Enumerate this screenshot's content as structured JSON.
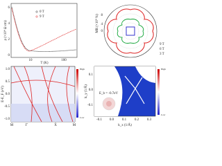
{
  "panels": [
    {
      "y_label": "ρ (×10⁴ Ω cm)",
      "x_label": "T (K)",
      "x_ticks": [
        "10",
        "100"
      ],
      "y_ticks": [
        "0",
        "2",
        "4",
        "6"
      ],
      "legend": [
        "0 T",
        "9 T"
      ]
    },
    {
      "y_label": "MR (×10⁴ %)",
      "ticks": [
        "0",
        "4",
        "8"
      ],
      "legend": [
        "9 T",
        "6 T",
        "3 T"
      ]
    },
    {
      "y_label": "E-E_F (eV)",
      "y_ticks": [
        "1.0",
        "0.5",
        "0.0",
        "-0.5",
        "-1.0"
      ],
      "x_ticks": [
        "M̄",
        "Γ̄",
        "X̄",
        "M̄"
      ],
      "colorbar": [
        "High",
        "Low"
      ]
    },
    {
      "annotation": "E_b = -0.7eV",
      "x_label": "k_x (1/Å)",
      "y_label": "k_y (1/Å)",
      "x_ticks": [
        "-0.1",
        "0.0",
        "0.1",
        "0.2",
        "0.3"
      ],
      "y_ticks": [
        "0.1",
        "0.0",
        "-0.1"
      ],
      "colorbar": [
        "High",
        "Low"
      ]
    }
  ]
}
